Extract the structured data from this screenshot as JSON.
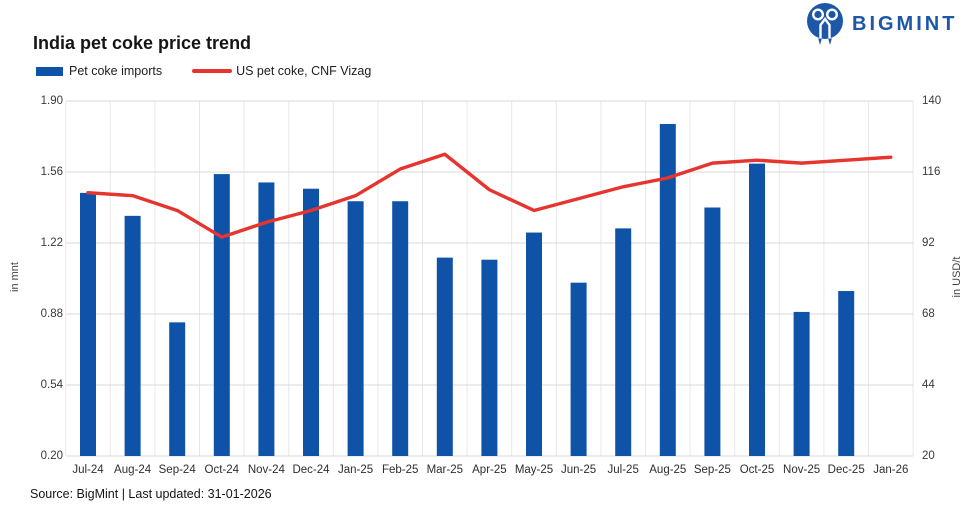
{
  "brand": {
    "logo_text": "BIGMINT",
    "logo_color": "#1C57A8"
  },
  "header": {
    "title": "India pet coke price trend"
  },
  "legend": [
    {
      "label": "Pet coke imports",
      "type": "bar",
      "color": "#0E53A7"
    },
    {
      "label": "US pet coke, CNF Vizag",
      "type": "line",
      "color": "#E6352F"
    }
  ],
  "footer": {
    "source": "Source: BigMint | Last updated: 31-01-2026"
  },
  "chart_data": {
    "type": "combo-bar-line",
    "title": "India pet coke price trend",
    "categories": [
      "Jul-24",
      "Aug-24",
      "Sep-24",
      "Oct-24",
      "Nov-24",
      "Dec-24",
      "Jan-25",
      "Feb-25",
      "Mar-25",
      "Apr-25",
      "May-25",
      "Jun-25",
      "Jul-25",
      "Aug-25",
      "Sep-25",
      "Oct-25",
      "Nov-25",
      "Dec-25",
      "Jan-26"
    ],
    "series": [
      {
        "name": "Pet coke imports",
        "type": "bar",
        "axis": "left",
        "color": "#0E53A7",
        "values": [
          1.46,
          1.35,
          0.84,
          1.55,
          1.51,
          1.48,
          1.42,
          1.42,
          1.15,
          1.14,
          1.27,
          1.03,
          1.29,
          1.79,
          1.39,
          1.6,
          0.89,
          0.99,
          null
        ]
      },
      {
        "name": "US pet coke, CNF Vizag",
        "type": "line",
        "axis": "right",
        "color": "#E6352F",
        "values": [
          109,
          108,
          103,
          94,
          99,
          103,
          108,
          117,
          122,
          110,
          103,
          107,
          111,
          114,
          119,
          120,
          119,
          120,
          121
        ]
      }
    ],
    "axes": {
      "left": {
        "label": "in mnt",
        "min": 0.2,
        "max": 1.9,
        "ticks": [
          "1.90",
          "1.56",
          "1.22",
          "0.88",
          "0.54",
          "0.20"
        ]
      },
      "right": {
        "label": "in USD/t",
        "min": 20,
        "max": 140,
        "ticks": [
          140,
          116,
          92,
          68,
          44,
          20
        ]
      }
    },
    "grid": {
      "horizontal": true,
      "vertical": true
    },
    "legend_position": "top-left"
  }
}
